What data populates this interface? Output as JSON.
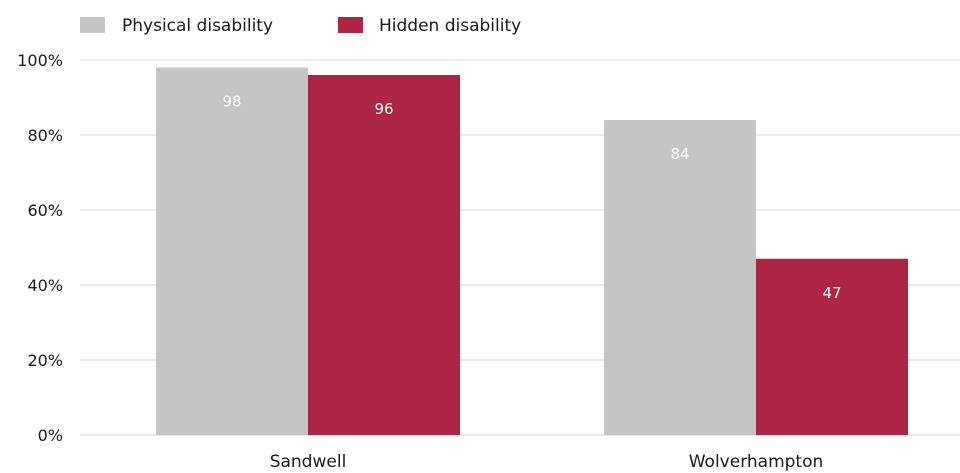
{
  "chart_data": {
    "type": "bar",
    "categories": [
      "Sandwell",
      "Wolverhampton"
    ],
    "series": [
      {
        "name": "Physical disability",
        "values": [
          98,
          84
        ],
        "color": "#c6c4c5"
      },
      {
        "name": "Hidden disability",
        "values": [
          96,
          47
        ],
        "color": "#ae2445"
      }
    ],
    "ylim": [
      0,
      100
    ],
    "yticks": [
      "0%",
      "20%",
      "40%",
      "60%",
      "80%",
      "100%"
    ],
    "ytick_values": [
      0,
      20,
      40,
      60,
      80,
      100
    ],
    "data_labels": true,
    "legend_position": "top-left",
    "grid": true
  }
}
